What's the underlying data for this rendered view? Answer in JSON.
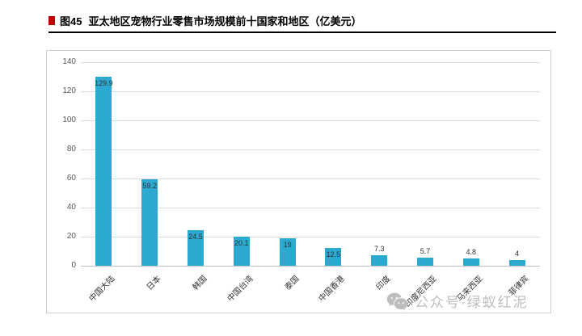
{
  "header": {
    "tag": "图45",
    "title": "亚太地区宠物行业零售市场规模前十国家和地区（亿美元）"
  },
  "watermark": {
    "icon": "wechat-icon",
    "text": "公众号·绿蚁红泥"
  },
  "colors": {
    "bar": "#2BA9D1",
    "title_marker": "#c00000",
    "gridline": "#dcdcdc",
    "watermark": "#bdbdbd"
  },
  "chart_data": {
    "type": "bar",
    "title": "亚太地区宠物行业零售市场规模前十国家和地区（亿美元）",
    "categories": [
      "中国大陆",
      "日本",
      "韩国",
      "中国台湾",
      "泰国",
      "中国香港",
      "印度",
      "印度尼西亚",
      "马来西亚",
      "菲律宾"
    ],
    "values": [
      129.9,
      59.2,
      24.5,
      20.1,
      19,
      12.5,
      7.3,
      5.7,
      4.8,
      4
    ],
    "value_labels": [
      "129.9",
      "59.2",
      "24.5",
      "20.1",
      "19",
      "12.5",
      "7.3",
      "5.7",
      "4.8",
      "4"
    ],
    "xlabel": "",
    "ylabel": "",
    "ylim": [
      0,
      140
    ],
    "ytick_step": 20,
    "yticks": [
      0,
      20,
      40,
      60,
      80,
      100,
      120,
      140
    ],
    "bar_color": "#2BA9D1",
    "grid": true,
    "legend": false,
    "x_label_rotation": 45
  }
}
